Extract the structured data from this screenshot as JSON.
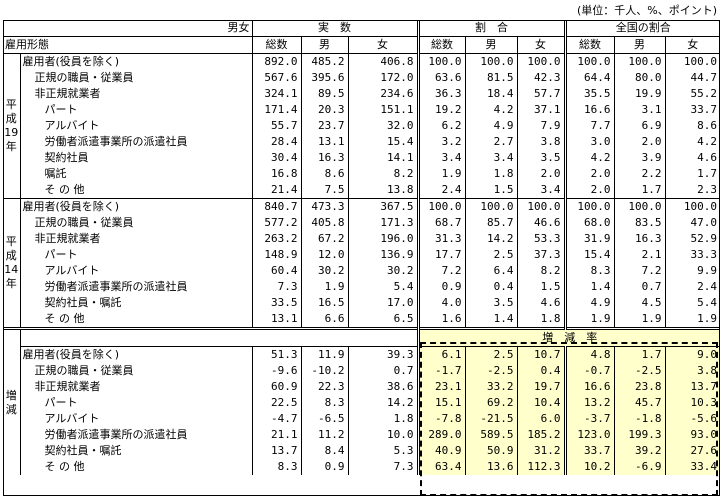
{
  "unit_note": "(単位：千人、%、ポイント)",
  "header": {
    "corner_top": "男女",
    "corner_bottom": "雇用形態",
    "group_actual": "実　数",
    "group_ratio": "割　合",
    "group_national": "全国の割合",
    "col_total": "総数",
    "col_male": "男",
    "col_female": "女"
  },
  "sections": {
    "h19": {
      "label": "平成19年",
      "rows": [
        {
          "label": "雇用者(役員を除く)",
          "v": [
            "892.0",
            "485.2",
            "406.8",
            "100.0",
            "100.0",
            "100.0",
            "100.0",
            "100.0",
            "100.0"
          ]
        },
        {
          "label": "正規の職員・従業員",
          "v": [
            "567.6",
            "395.6",
            "172.0",
            "63.6",
            "81.5",
            "42.3",
            "64.4",
            "80.0",
            "44.7"
          ]
        },
        {
          "label": "非正規就業者",
          "v": [
            "324.1",
            "89.5",
            "234.6",
            "36.3",
            "18.4",
            "57.7",
            "35.5",
            "19.9",
            "55.2"
          ]
        },
        {
          "label": "パート",
          "v": [
            "171.4",
            "20.3",
            "151.1",
            "19.2",
            "4.2",
            "37.1",
            "16.6",
            "3.1",
            "33.7"
          ]
        },
        {
          "label": "アルバイト",
          "v": [
            "55.7",
            "23.7",
            "32.0",
            "6.2",
            "4.9",
            "7.9",
            "7.7",
            "6.9",
            "8.6"
          ]
        },
        {
          "label": "労働者派遣事業所の派遣社員",
          "v": [
            "28.4",
            "13.1",
            "15.4",
            "3.2",
            "2.7",
            "3.8",
            "3.0",
            "2.0",
            "4.2"
          ]
        },
        {
          "label": "契約社員",
          "v": [
            "30.4",
            "16.3",
            "14.1",
            "3.4",
            "3.4",
            "3.5",
            "4.2",
            "3.9",
            "4.6"
          ]
        },
        {
          "label": "嘱託",
          "v": [
            "16.8",
            "8.6",
            "8.2",
            "1.9",
            "1.8",
            "2.0",
            "2.0",
            "2.2",
            "1.7"
          ]
        },
        {
          "label": "そ の 他",
          "v": [
            "21.4",
            "7.5",
            "13.8",
            "2.4",
            "1.5",
            "3.4",
            "2.0",
            "1.7",
            "2.3"
          ]
        }
      ]
    },
    "h14": {
      "label": "平成14年",
      "rows": [
        {
          "label": "雇用者(役員を除く)",
          "v": [
            "840.7",
            "473.3",
            "367.5",
            "100.0",
            "100.0",
            "100.0",
            "100.0",
            "100.0",
            "100.0"
          ]
        },
        {
          "label": "正規の職員・従業員",
          "v": [
            "577.2",
            "405.8",
            "171.3",
            "68.7",
            "85.7",
            "46.6",
            "68.0",
            "83.5",
            "47.0"
          ]
        },
        {
          "label": "非正規就業者",
          "v": [
            "263.2",
            "67.2",
            "196.0",
            "31.3",
            "14.2",
            "53.3",
            "31.9",
            "16.3",
            "52.9"
          ]
        },
        {
          "label": "パート",
          "v": [
            "148.9",
            "12.0",
            "136.9",
            "17.7",
            "2.5",
            "37.3",
            "15.4",
            "2.1",
            "33.3"
          ]
        },
        {
          "label": "アルバイト",
          "v": [
            "60.4",
            "30.2",
            "30.2",
            "7.2",
            "6.4",
            "8.2",
            "8.3",
            "7.2",
            "9.9"
          ]
        },
        {
          "label": "労働者派遣事業所の派遣社員",
          "v": [
            "7.3",
            "1.9",
            "5.4",
            "0.9",
            "0.4",
            "1.5",
            "1.4",
            "0.7",
            "2.4"
          ]
        },
        {
          "label": "契約社員・嘱託",
          "v": [
            "33.5",
            "16.5",
            "17.0",
            "4.0",
            "3.5",
            "4.6",
            "4.9",
            "4.5",
            "5.4"
          ]
        },
        {
          "label": "そ の 他",
          "v": [
            "13.1",
            "6.6",
            "6.5",
            "1.6",
            "1.4",
            "1.8",
            "1.9",
            "1.9",
            "1.9"
          ]
        }
      ]
    },
    "change": {
      "label": "増減",
      "rate_label": "増　減　率",
      "rows": [
        {
          "label": "雇用者(役員を除く)",
          "v": [
            "51.3",
            "11.9",
            "39.3",
            "6.1",
            "2.5",
            "10.7",
            "4.8",
            "1.7",
            "9.0"
          ]
        },
        {
          "label": "正規の職員・従業員",
          "v": [
            "-9.6",
            "-10.2",
            "0.7",
            "-1.7",
            "-2.5",
            "0.4",
            "-0.7",
            "-2.5",
            "3.8"
          ]
        },
        {
          "label": "非正規就業者",
          "v": [
            "60.9",
            "22.3",
            "38.6",
            "23.1",
            "33.2",
            "19.7",
            "16.6",
            "23.8",
            "13.7"
          ]
        },
        {
          "label": "パート",
          "v": [
            "22.5",
            "8.3",
            "14.2",
            "15.1",
            "69.2",
            "10.4",
            "13.2",
            "45.7",
            "10.3"
          ]
        },
        {
          "label": "アルバイト",
          "v": [
            "-4.7",
            "-6.5",
            "1.8",
            "-7.8",
            "-21.5",
            "6.0",
            "-3.7",
            "-1.8",
            "-5.6"
          ]
        },
        {
          "label": "労働者派遣事業所の派遣社員",
          "v": [
            "21.1",
            "11.2",
            "10.0",
            "289.0",
            "589.5",
            "185.2",
            "123.0",
            "199.3",
            "93.0"
          ]
        },
        {
          "label": "契約社員・嘱託",
          "v": [
            "13.7",
            "8.4",
            "5.3",
            "40.9",
            "50.9",
            "31.2",
            "33.7",
            "39.2",
            "27.6"
          ]
        },
        {
          "label": "そ の 他",
          "v": [
            "8.3",
            "0.9",
            "7.3",
            "63.4",
            "13.6",
            "112.3",
            "10.2",
            "-6.9",
            "33.4"
          ]
        }
      ]
    }
  },
  "colors": {
    "highlight": "#ffffcc",
    "rule": "#000000"
  }
}
